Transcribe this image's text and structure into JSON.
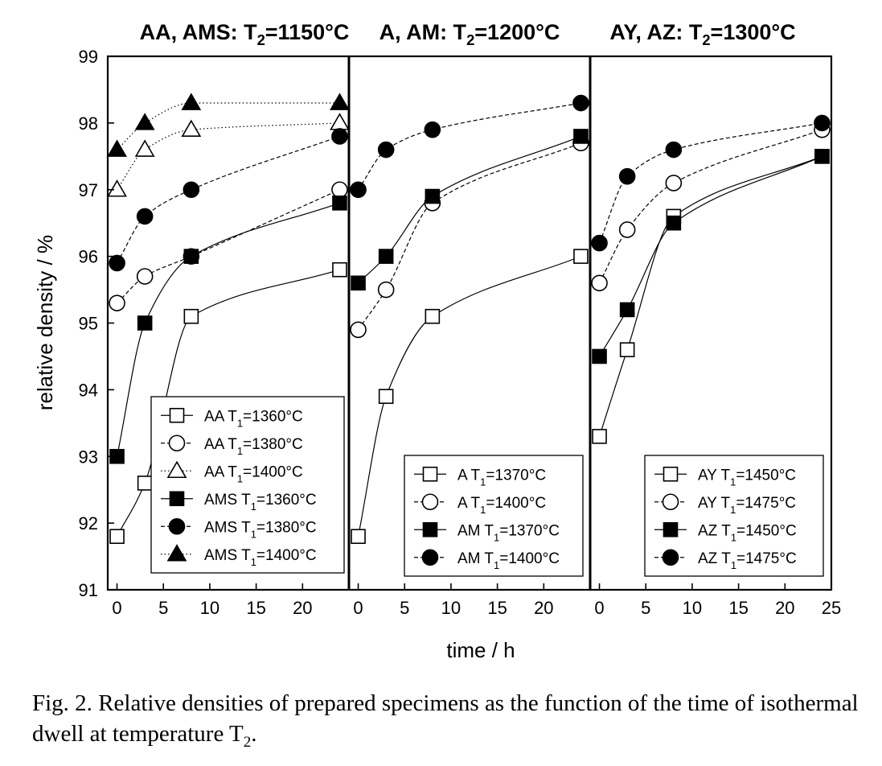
{
  "chart_data": {
    "type": "scatter",
    "ylabel": "relative density / %",
    "xlabel": "time / h",
    "ylim": [
      91,
      99
    ],
    "yticks": [
      91,
      92,
      93,
      94,
      95,
      96,
      97,
      98,
      99
    ],
    "grid": false,
    "panels": [
      {
        "title": "AA, AMS: T2=1150°C",
        "title_parts": [
          "AA, AMS: T",
          "2",
          "=1150°C"
        ],
        "xlim": [
          -1,
          25
        ],
        "xticks": [
          0,
          5,
          10,
          15,
          20
        ],
        "legend_position": "bottom-right",
        "series": [
          {
            "name": "AA T1=1360°C",
            "label_parts": [
              "AA T",
              "1",
              "=1360°C"
            ],
            "marker": "open-square",
            "line": "solid",
            "x": [
              0,
              3,
              8,
              24
            ],
            "y": [
              91.8,
              92.6,
              95.1,
              95.8
            ]
          },
          {
            "name": "AA T1=1380°C",
            "label_parts": [
              "AA T",
              "1",
              "=1380°C"
            ],
            "marker": "open-circle",
            "line": "dashed",
            "x": [
              0,
              3,
              8,
              24
            ],
            "y": [
              95.3,
              95.7,
              96.0,
              97.0
            ]
          },
          {
            "name": "AA T1=1400°C",
            "label_parts": [
              "AA T",
              "1",
              "=1400°C"
            ],
            "marker": "open-triangle",
            "line": "dotted",
            "x": [
              0,
              3,
              8,
              24
            ],
            "y": [
              97.0,
              97.6,
              97.9,
              98.0
            ]
          },
          {
            "name": "AMS T1=1360°C",
            "label_parts": [
              "AMS T",
              "1",
              "=1360°C"
            ],
            "marker": "filled-square",
            "line": "solid",
            "x": [
              0,
              3,
              8,
              24
            ],
            "y": [
              93.0,
              95.0,
              96.0,
              96.8
            ]
          },
          {
            "name": "AMS T1=1380°C",
            "label_parts": [
              "AMS T",
              "1",
              "=1380°C"
            ],
            "marker": "filled-circle",
            "line": "dashed",
            "x": [
              0,
              3,
              8,
              24
            ],
            "y": [
              95.9,
              96.6,
              97.0,
              97.8
            ]
          },
          {
            "name": "AMS T1=1400°C",
            "label_parts": [
              "AMS T",
              "1",
              "=1400°C"
            ],
            "marker": "filled-triangle",
            "line": "dotted",
            "x": [
              0,
              3,
              8,
              24
            ],
            "y": [
              97.6,
              98.0,
              98.3,
              98.3
            ]
          }
        ]
      },
      {
        "title": "A, AM: T2=1200°C",
        "title_parts": [
          "A, AM: T",
          "2",
          "=1200°C"
        ],
        "xlim": [
          -1,
          25
        ],
        "xticks": [
          0,
          5,
          10,
          15,
          20
        ],
        "legend_position": "bottom-right",
        "series": [
          {
            "name": "A T1=1370°C",
            "label_parts": [
              "A T",
              "1",
              "=1370°C"
            ],
            "marker": "open-square",
            "line": "solid",
            "x": [
              0,
              3,
              8,
              24
            ],
            "y": [
              91.8,
              93.9,
              95.1,
              96.0
            ]
          },
          {
            "name": "A T1=1400°C",
            "label_parts": [
              "A T",
              "1",
              "=1400°C"
            ],
            "marker": "open-circle",
            "line": "dashed",
            "x": [
              0,
              3,
              8,
              24
            ],
            "y": [
              94.9,
              95.5,
              96.8,
              97.7
            ]
          },
          {
            "name": "AM T1=1370°C",
            "label_parts": [
              "AM T",
              "1",
              "=1370°C"
            ],
            "marker": "filled-square",
            "line": "solid",
            "x": [
              0,
              3,
              8,
              24
            ],
            "y": [
              95.6,
              96.0,
              96.9,
              97.8
            ]
          },
          {
            "name": "AM T1=1400°C",
            "label_parts": [
              "AM T",
              "1",
              "=1400°C"
            ],
            "marker": "filled-circle",
            "line": "dashed",
            "x": [
              0,
              3,
              8,
              24
            ],
            "y": [
              97.0,
              97.6,
              97.9,
              98.3
            ]
          }
        ]
      },
      {
        "title": "AY, AZ: T2=1300°C",
        "title_parts": [
          "AY, AZ: T",
          "2",
          "=1300°C"
        ],
        "xlim": [
          -1,
          25
        ],
        "xticks": [
          0,
          5,
          10,
          15,
          20,
          25
        ],
        "legend_position": "bottom-right",
        "series": [
          {
            "name": "AY T1=1450°C",
            "label_parts": [
              "AY T",
              "1",
              "=1450°C"
            ],
            "marker": "open-square",
            "line": "solid",
            "x": [
              0,
              3,
              8,
              24
            ],
            "y": [
              93.3,
              94.6,
              96.6,
              97.5
            ]
          },
          {
            "name": "AY T1=1475°C",
            "label_parts": [
              "AY T",
              "1",
              "=1475°C"
            ],
            "marker": "open-circle",
            "line": "dashed",
            "x": [
              0,
              3,
              8,
              24
            ],
            "y": [
              95.6,
              96.4,
              97.1,
              97.9
            ]
          },
          {
            "name": "AZ T1=1450°C",
            "label_parts": [
              "AZ T",
              "1",
              "=1450°C"
            ],
            "marker": "filled-square",
            "line": "solid",
            "x": [
              0,
              3,
              8,
              24
            ],
            "y": [
              94.5,
              95.2,
              96.5,
              97.5
            ]
          },
          {
            "name": "AZ T1=1475°C",
            "label_parts": [
              "AZ T",
              "1",
              "=1475°C"
            ],
            "marker": "filled-circle",
            "line": "dashed",
            "x": [
              0,
              3,
              8,
              24
            ],
            "y": [
              96.2,
              97.2,
              97.6,
              98.0
            ]
          }
        ]
      }
    ]
  },
  "caption": {
    "label": "Fig. 2.",
    "text": "Relative densities of prepared specimens as the function of the time of isothermal dwell at temperature T",
    "subscript": "2",
    "end": "."
  }
}
